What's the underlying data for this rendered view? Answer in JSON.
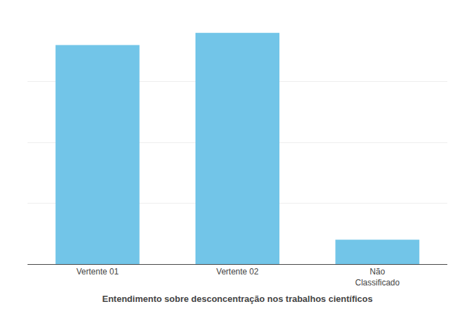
{
  "chart_data": {
    "type": "bar",
    "xlabel": "Entendimento sobre desconcentração nos trabalhos científicos",
    "categories": [
      "Vertente 01",
      "Vertente 02",
      "Não\nClassificado"
    ],
    "values": [
      18,
      19,
      2
    ],
    "color": "#72C5E8",
    "ylim": [
      0,
      20
    ],
    "yticks": [
      0,
      5,
      10,
      15,
      20
    ],
    "grid": true,
    "tick_labels": "x"
  }
}
